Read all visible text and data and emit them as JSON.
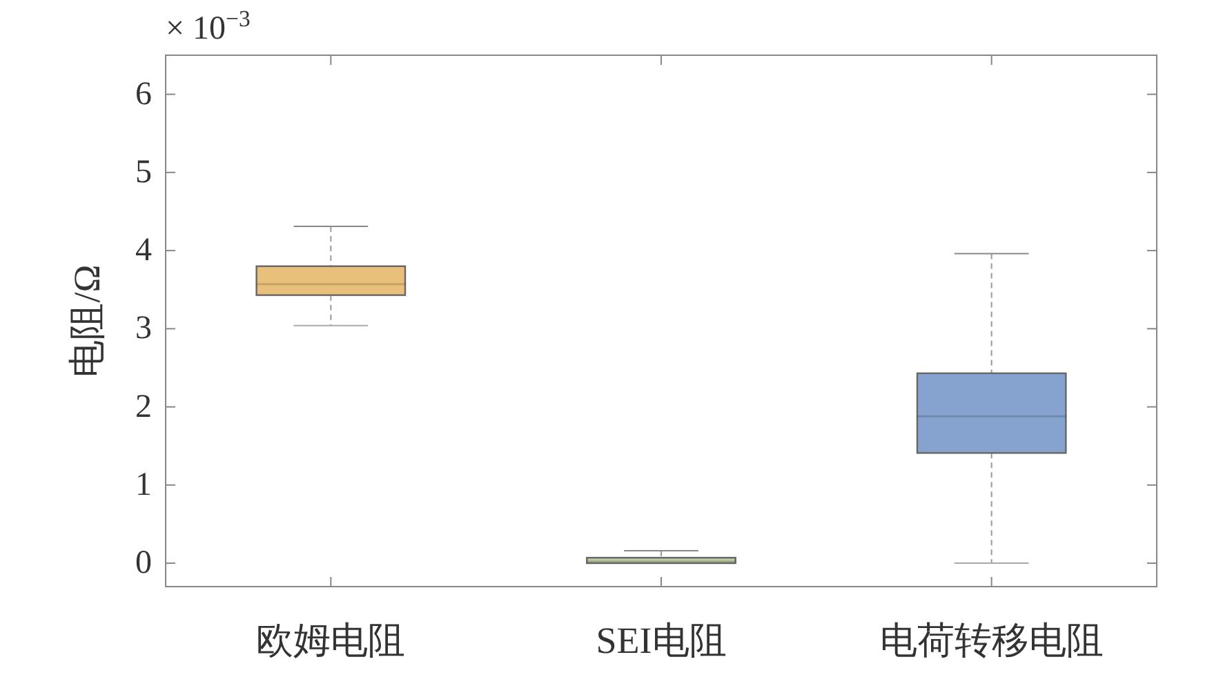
{
  "chart_data": {
    "type": "box",
    "ylabel": "电阻/Ω",
    "categories": [
      "欧姆电阻",
      "SEI电阻",
      "电荷转移电阻"
    ],
    "colors": [
      "#e9c07b",
      "#bccba2",
      "#86a3d0"
    ],
    "boxes": [
      {
        "low": 3.04,
        "q1": 3.43,
        "median": 3.57,
        "q3": 3.8,
        "high": 4.31
      },
      {
        "low": 0.0,
        "q1": 0.0,
        "median": 0.02,
        "q3": 0.07,
        "high": 0.16
      },
      {
        "low": 0.0,
        "q1": 1.41,
        "median": 1.88,
        "q3": 2.43,
        "high": 3.96
      }
    ],
    "ylim": [
      -0.3,
      6.5
    ],
    "yticks": [
      0,
      1,
      2,
      3,
      4,
      5,
      6
    ],
    "annotations": [
      "× 10$^{−3}$"
    ],
    "grid": false
  }
}
